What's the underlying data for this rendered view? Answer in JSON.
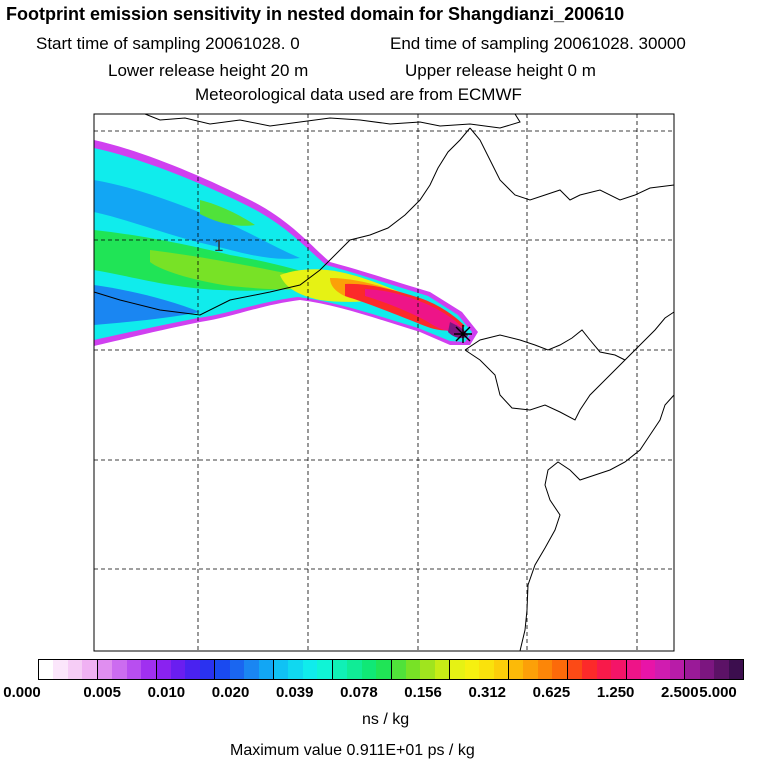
{
  "header": {
    "title": "Footprint emission sensitivity in nested domain for Shangdianzi_200610",
    "start_label": "Start time of sampling 20061028.     0",
    "end_label": "End time of sampling 20061028. 30000",
    "lower_label": "Lower release height   20 m",
    "upper_label": "Upper release height    0 m",
    "met_label": "Meteorological data used are from ECMWF"
  },
  "map": {
    "grid_label": "1",
    "station_marker": "release-site"
  },
  "legend": {
    "ticks": [
      "0.000",
      "0.005",
      "0.010",
      "0.020",
      "0.039",
      "0.078",
      "0.156",
      "0.312",
      "0.625",
      "1.250",
      "2.500",
      "5.000"
    ],
    "unit": "ns / kg",
    "max_value_label": "Maximum value  0.911E+01 ps / kg",
    "colors": [
      [
        "#ffffff",
        "#fbe6fb",
        "#f6cdf6",
        "#f0b1f3"
      ],
      [
        "#e08ef0",
        "#cc6cf0",
        "#b84ef0",
        "#a030f0"
      ],
      [
        "#8a22f0",
        "#6a1ef0",
        "#4a22f0",
        "#2a32f0"
      ],
      [
        "#1a4af0",
        "#1a66f0",
        "#1a86f2",
        "#12a6f4"
      ],
      [
        "#10c2f4",
        "#10d8f0",
        "#10ecec",
        "#10f4d6"
      ],
      [
        "#10f0b6",
        "#10ec96",
        "#10e876",
        "#20e456"
      ],
      [
        "#50e23a",
        "#78e226",
        "#a0e41e",
        "#c6ec16"
      ],
      [
        "#e6f214",
        "#f6f010",
        "#fae20c",
        "#fcce0a"
      ],
      [
        "#fcba08",
        "#fca008",
        "#fc8608",
        "#fc6a0a"
      ],
      [
        "#fc4a16",
        "#fc2a2a",
        "#f81a4a",
        "#f41468"
      ],
      [
        "#ee1488",
        "#e814a8",
        "#d01cb0",
        "#b81ca8"
      ],
      [
        "#9a1a98",
        "#7c1680",
        "#5c1266",
        "#3c0e4e"
      ]
    ]
  }
}
